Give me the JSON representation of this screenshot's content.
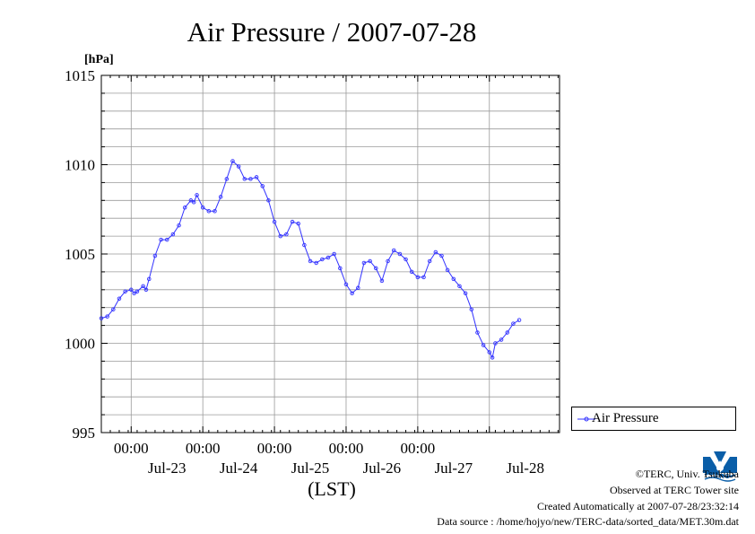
{
  "chart_data": {
    "type": "line",
    "title": "Air Pressure / 2007-07-28",
    "ylabel": "[hPa]",
    "xlabel": "(LST)",
    "ylim": [
      995,
      1015
    ],
    "yticks": [
      995,
      1000,
      1005,
      1010,
      1015
    ],
    "xlim": [
      "2007-07-22 14:00",
      "2007-07-28 23:30"
    ],
    "xticks": [
      {
        "time": "2007-07-23 00:00",
        "label_time": "00:00",
        "label_date": "Jul-23"
      },
      {
        "time": "2007-07-24 00:00",
        "label_time": "00:00",
        "label_date": "Jul-24"
      },
      {
        "time": "2007-07-25 00:00",
        "label_time": "00:00",
        "label_date": "Jul-25"
      },
      {
        "time": "2007-07-26 00:00",
        "label_time": "00:00",
        "label_date": "Jul-26"
      },
      {
        "time": "2007-07-27 00:00",
        "label_time": "00:00",
        "label_date": "Jul-27"
      },
      {
        "time": "2007-07-28 00:00",
        "label_time": "",
        "label_date": "Jul-28"
      }
    ],
    "grid": true,
    "legend_position": "right-bottom",
    "series": [
      {
        "name": "Air Pressure",
        "color": "#3333ff",
        "marker": "circle",
        "points": [
          [
            "2007-07-22 14:00",
            1001.4
          ],
          [
            "2007-07-22 16:00",
            1001.5
          ],
          [
            "2007-07-22 18:00",
            1001.9
          ],
          [
            "2007-07-22 20:00",
            1002.5
          ],
          [
            "2007-07-22 22:00",
            1002.9
          ],
          [
            "2007-07-23 00:00",
            1003.0
          ],
          [
            "2007-07-23 01:00",
            1002.8
          ],
          [
            "2007-07-23 02:00",
            1002.9
          ],
          [
            "2007-07-23 04:00",
            1003.2
          ],
          [
            "2007-07-23 05:00",
            1003.0
          ],
          [
            "2007-07-23 06:00",
            1003.6
          ],
          [
            "2007-07-23 08:00",
            1004.9
          ],
          [
            "2007-07-23 10:00",
            1005.8
          ],
          [
            "2007-07-23 12:00",
            1005.8
          ],
          [
            "2007-07-23 14:00",
            1006.1
          ],
          [
            "2007-07-23 16:00",
            1006.6
          ],
          [
            "2007-07-23 18:00",
            1007.6
          ],
          [
            "2007-07-23 20:00",
            1008.0
          ],
          [
            "2007-07-23 21:00",
            1007.9
          ],
          [
            "2007-07-23 22:00",
            1008.3
          ],
          [
            "2007-07-24 00:00",
            1007.6
          ],
          [
            "2007-07-24 02:00",
            1007.4
          ],
          [
            "2007-07-24 04:00",
            1007.4
          ],
          [
            "2007-07-24 06:00",
            1008.2
          ],
          [
            "2007-07-24 08:00",
            1009.2
          ],
          [
            "2007-07-24 10:00",
            1010.2
          ],
          [
            "2007-07-24 12:00",
            1009.9
          ],
          [
            "2007-07-24 14:00",
            1009.2
          ],
          [
            "2007-07-24 16:00",
            1009.2
          ],
          [
            "2007-07-24 18:00",
            1009.3
          ],
          [
            "2007-07-24 20:00",
            1008.8
          ],
          [
            "2007-07-24 22:00",
            1008.0
          ],
          [
            "2007-07-25 00:00",
            1006.8
          ],
          [
            "2007-07-25 02:00",
            1006.0
          ],
          [
            "2007-07-25 04:00",
            1006.1
          ],
          [
            "2007-07-25 06:00",
            1006.8
          ],
          [
            "2007-07-25 08:00",
            1006.7
          ],
          [
            "2007-07-25 10:00",
            1005.5
          ],
          [
            "2007-07-25 12:00",
            1004.6
          ],
          [
            "2007-07-25 14:00",
            1004.5
          ],
          [
            "2007-07-25 16:00",
            1004.7
          ],
          [
            "2007-07-25 18:00",
            1004.8
          ],
          [
            "2007-07-25 20:00",
            1005.0
          ],
          [
            "2007-07-25 22:00",
            1004.2
          ],
          [
            "2007-07-26 00:00",
            1003.3
          ],
          [
            "2007-07-26 02:00",
            1002.8
          ],
          [
            "2007-07-26 04:00",
            1003.1
          ],
          [
            "2007-07-26 06:00",
            1004.5
          ],
          [
            "2007-07-26 08:00",
            1004.6
          ],
          [
            "2007-07-26 10:00",
            1004.2
          ],
          [
            "2007-07-26 12:00",
            1003.5
          ],
          [
            "2007-07-26 14:00",
            1004.6
          ],
          [
            "2007-07-26 16:00",
            1005.2
          ],
          [
            "2007-07-26 18:00",
            1005.0
          ],
          [
            "2007-07-26 20:00",
            1004.7
          ],
          [
            "2007-07-26 22:00",
            1004.0
          ],
          [
            "2007-07-27 00:00",
            1003.7
          ],
          [
            "2007-07-27 02:00",
            1003.7
          ],
          [
            "2007-07-27 04:00",
            1004.6
          ],
          [
            "2007-07-27 06:00",
            1005.1
          ],
          [
            "2007-07-27 08:00",
            1004.9
          ],
          [
            "2007-07-27 10:00",
            1004.1
          ],
          [
            "2007-07-27 12:00",
            1003.6
          ],
          [
            "2007-07-27 14:00",
            1003.2
          ],
          [
            "2007-07-27 16:00",
            1002.8
          ],
          [
            "2007-07-27 18:00",
            1001.9
          ],
          [
            "2007-07-27 20:00",
            1000.6
          ],
          [
            "2007-07-27 22:00",
            999.9
          ],
          [
            "2007-07-28 00:00",
            999.5
          ],
          [
            "2007-07-28 01:00",
            999.2
          ],
          [
            "2007-07-28 02:00",
            1000.0
          ],
          [
            "2007-07-28 04:00",
            1000.2
          ],
          [
            "2007-07-28 06:00",
            1000.6
          ],
          [
            "2007-07-28 08:00",
            1001.1
          ],
          [
            "2007-07-28 10:00",
            1001.3
          ]
        ]
      }
    ]
  },
  "legend": {
    "label": "Air Pressure"
  },
  "footer": {
    "copyright": "©TERC, Univ. Tsukuba",
    "observed": "Observed at TERC Tower site",
    "created": "Created Automatically at 2007-07-28/23:32:14",
    "source": "Data source : /home/hojyo/new/TERC-data/sorted_data/MET.30m.dat",
    "logo_text": "TERC"
  }
}
